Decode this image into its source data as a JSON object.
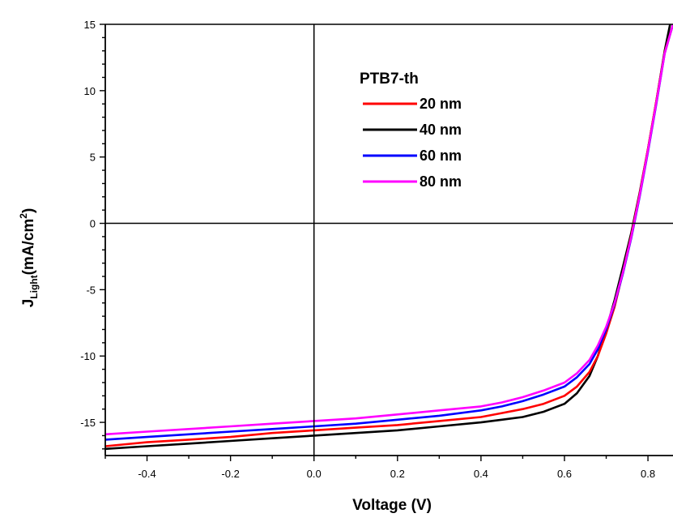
{
  "chart_data": {
    "type": "line",
    "title": "",
    "xlabel": "Voltage (V)",
    "ylabel": {
      "main": "J",
      "subscript": "Light",
      "unit_prefix": "(mA/cm",
      "superscript": "2",
      "unit_suffix": ")"
    },
    "xlim": [
      -0.5,
      0.86
    ],
    "ylim": [
      -17.5,
      15
    ],
    "x_ticks": [
      -0.4,
      -0.2,
      0.0,
      0.2,
      0.4,
      0.6,
      0.8
    ],
    "x_tick_labels": [
      "-0.4",
      "-0.2",
      "0.0",
      "0.2",
      "0.4",
      "0.6",
      "0.8"
    ],
    "y_ticks": [
      15,
      10,
      5,
      0,
      -5,
      -10,
      -15
    ],
    "y_tick_labels": [
      "15",
      "10",
      "5",
      "0",
      "-5",
      "-10",
      "-15"
    ],
    "grid": false,
    "zero_lines": true,
    "legend": {
      "title": "PTB7-th",
      "placement": "top-center"
    },
    "series": [
      {
        "name": "20 nm",
        "color": "#ff0000",
        "x": [
          -0.5,
          -0.4,
          -0.3,
          -0.2,
          -0.1,
          0.0,
          0.1,
          0.2,
          0.3,
          0.4,
          0.45,
          0.5,
          0.55,
          0.6,
          0.63,
          0.66,
          0.68,
          0.7,
          0.72,
          0.74,
          0.76,
          0.78,
          0.8,
          0.82,
          0.84,
          0.86
        ],
        "y": [
          -16.8,
          -16.5,
          -16.3,
          -16.1,
          -15.8,
          -15.6,
          -15.4,
          -15.2,
          -14.9,
          -14.6,
          -14.3,
          -14.0,
          -13.6,
          -13.0,
          -12.3,
          -11.2,
          -10.0,
          -8.3,
          -6.3,
          -3.7,
          -0.9,
          2.2,
          5.6,
          9.2,
          12.9,
          15.0
        ]
      },
      {
        "name": "40 nm",
        "color": "#000000",
        "x": [
          -0.5,
          -0.4,
          -0.3,
          -0.2,
          -0.1,
          0.0,
          0.1,
          0.2,
          0.3,
          0.4,
          0.45,
          0.5,
          0.55,
          0.6,
          0.63,
          0.66,
          0.68,
          0.7,
          0.72,
          0.74,
          0.76,
          0.78,
          0.8,
          0.82,
          0.84,
          0.853
        ],
        "y": [
          -17.0,
          -16.8,
          -16.6,
          -16.4,
          -16.2,
          -16.0,
          -15.8,
          -15.6,
          -15.3,
          -15.0,
          -14.8,
          -14.6,
          -14.2,
          -13.6,
          -12.8,
          -11.5,
          -10.0,
          -8.0,
          -5.8,
          -3.3,
          -0.7,
          2.3,
          5.6,
          9.2,
          13.0,
          15.0
        ]
      },
      {
        "name": "60 nm",
        "color": "#0000ff",
        "x": [
          -0.5,
          -0.4,
          -0.3,
          -0.2,
          -0.1,
          0.0,
          0.1,
          0.2,
          0.3,
          0.4,
          0.45,
          0.5,
          0.55,
          0.6,
          0.63,
          0.66,
          0.68,
          0.7,
          0.72,
          0.74,
          0.76,
          0.78,
          0.8,
          0.82,
          0.84,
          0.86
        ],
        "y": [
          -16.3,
          -16.1,
          -15.9,
          -15.7,
          -15.5,
          -15.3,
          -15.1,
          -14.8,
          -14.5,
          -14.1,
          -13.8,
          -13.4,
          -12.9,
          -12.3,
          -11.6,
          -10.6,
          -9.5,
          -8.0,
          -6.1,
          -3.8,
          -1.1,
          2.0,
          5.4,
          9.0,
          12.8,
          15.0
        ]
      },
      {
        "name": "80 nm",
        "color": "#ff00ff",
        "x": [
          -0.5,
          -0.4,
          -0.3,
          -0.2,
          -0.1,
          0.0,
          0.1,
          0.2,
          0.3,
          0.4,
          0.45,
          0.5,
          0.55,
          0.6,
          0.63,
          0.66,
          0.68,
          0.7,
          0.72,
          0.74,
          0.76,
          0.78,
          0.8,
          0.82,
          0.84,
          0.86
        ],
        "y": [
          -15.9,
          -15.7,
          -15.5,
          -15.3,
          -15.1,
          -14.9,
          -14.7,
          -14.4,
          -14.1,
          -13.8,
          -13.5,
          -13.1,
          -12.6,
          -12.0,
          -11.3,
          -10.3,
          -9.2,
          -7.8,
          -6.0,
          -3.7,
          -1.0,
          2.1,
          5.5,
          9.1,
          12.8,
          15.0
        ]
      }
    ]
  }
}
